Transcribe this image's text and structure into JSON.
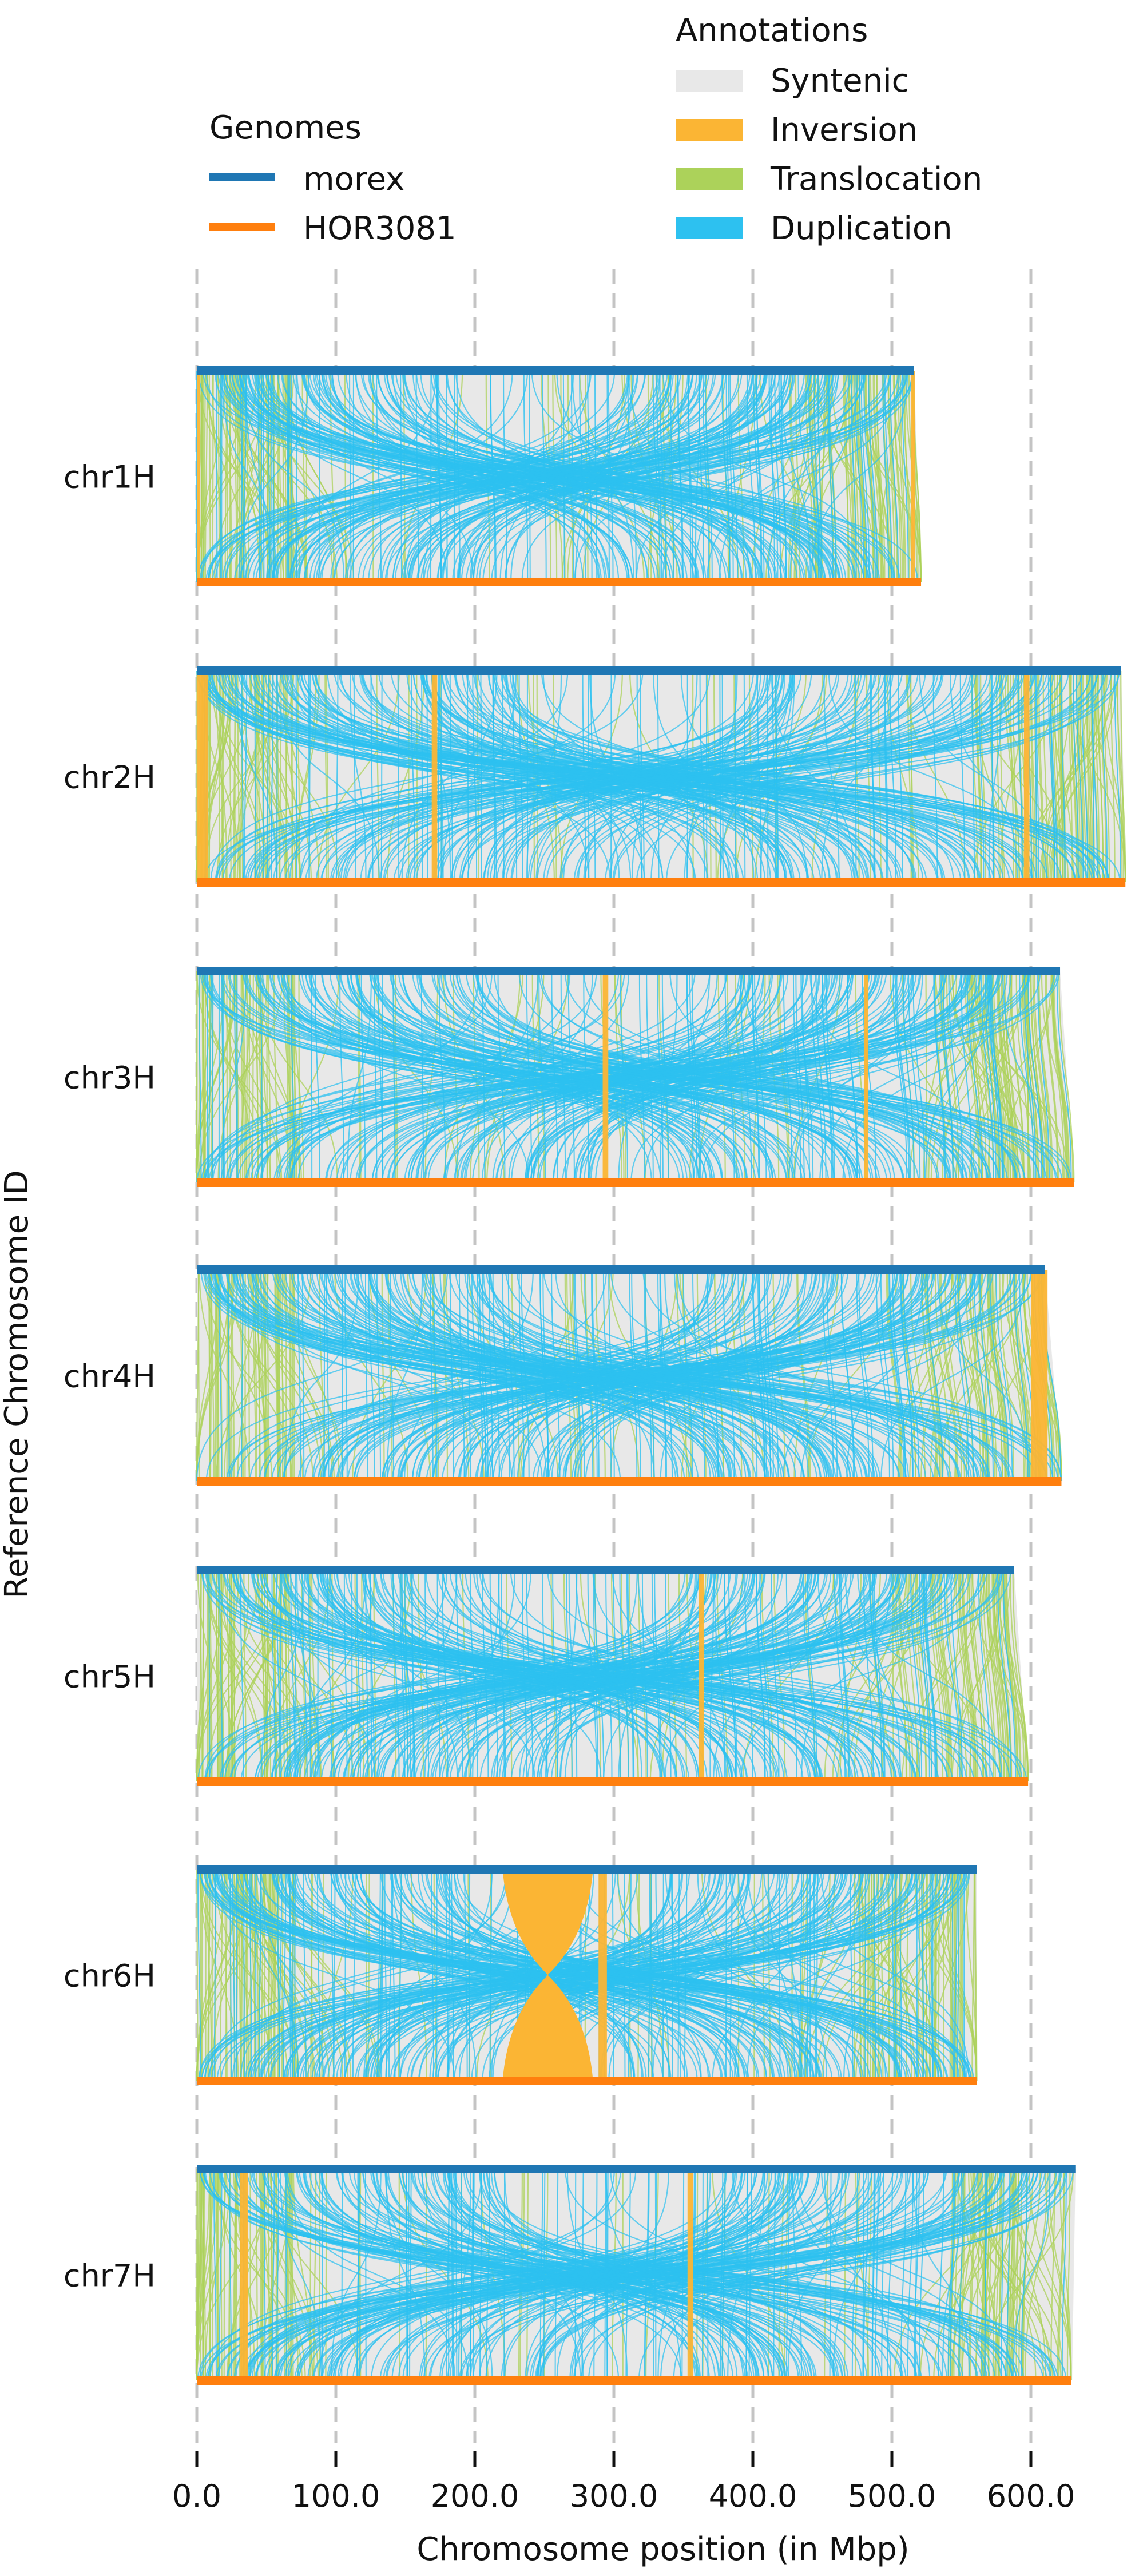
{
  "chart_data": {
    "type": "synteny",
    "xlabel": "Chromosome position (in Mbp)",
    "ylabel": "Reference Chromosome ID",
    "xlim": [
      0,
      650
    ],
    "x_ticks": [
      0,
      100,
      200,
      300,
      400,
      500,
      600
    ],
    "x_tick_labels": [
      "0.0",
      "100.0",
      "200.0",
      "300.0",
      "400.0",
      "500.0",
      "600.0"
    ],
    "grid": "vertical dashed",
    "legends": [
      {
        "title": "Genomes",
        "entries": [
          {
            "label": "morex",
            "color": "#1f77b4"
          },
          {
            "label": "HOR3081",
            "color": "#ff7f0e"
          }
        ]
      },
      {
        "title": "Annotations",
        "entries": [
          {
            "label": "Syntenic",
            "color": "#e8e8e8"
          },
          {
            "label": "Inversion",
            "color": "#fbb534"
          },
          {
            "label": "Translocation",
            "color": "#acd25a"
          },
          {
            "label": "Duplication",
            "color": "#2dc1f0"
          }
        ]
      }
    ],
    "chromosomes": [
      {
        "name": "chr1H",
        "morex_length": 516,
        "hor3081_length": 521,
        "inversions": [
          {
            "start": 0,
            "end": 2
          },
          {
            "start": 514,
            "end": 516
          }
        ]
      },
      {
        "name": "chr2H",
        "morex_length": 665,
        "hor3081_length": 668,
        "inversions": [
          {
            "start": 0,
            "end": 8
          },
          {
            "start": 169,
            "end": 173
          },
          {
            "start": 595,
            "end": 599
          }
        ]
      },
      {
        "name": "chr3H",
        "morex_length": 621,
        "hor3081_length": 631,
        "inversions": [
          {
            "start": 292,
            "end": 296
          },
          {
            "start": 480,
            "end": 483
          }
        ]
      },
      {
        "name": "chr4H",
        "morex_length": 610,
        "hor3081_length": 622,
        "inversions": [
          {
            "start": 600,
            "end": 612
          }
        ]
      },
      {
        "name": "chr5H",
        "morex_length": 588,
        "hor3081_length": 598,
        "inversions": [
          {
            "start": 361,
            "end": 365
          }
        ]
      },
      {
        "name": "chr6H",
        "morex_length": 561,
        "hor3081_length": 561,
        "inversions": [
          {
            "start": 220,
            "end": 285
          },
          {
            "start": 289,
            "end": 295
          }
        ]
      },
      {
        "name": "chr7H",
        "morex_length": 632,
        "hor3081_length": 629,
        "inversions": [
          {
            "start": 31,
            "end": 37
          },
          {
            "start": 353,
            "end": 357
          }
        ]
      }
    ]
  }
}
